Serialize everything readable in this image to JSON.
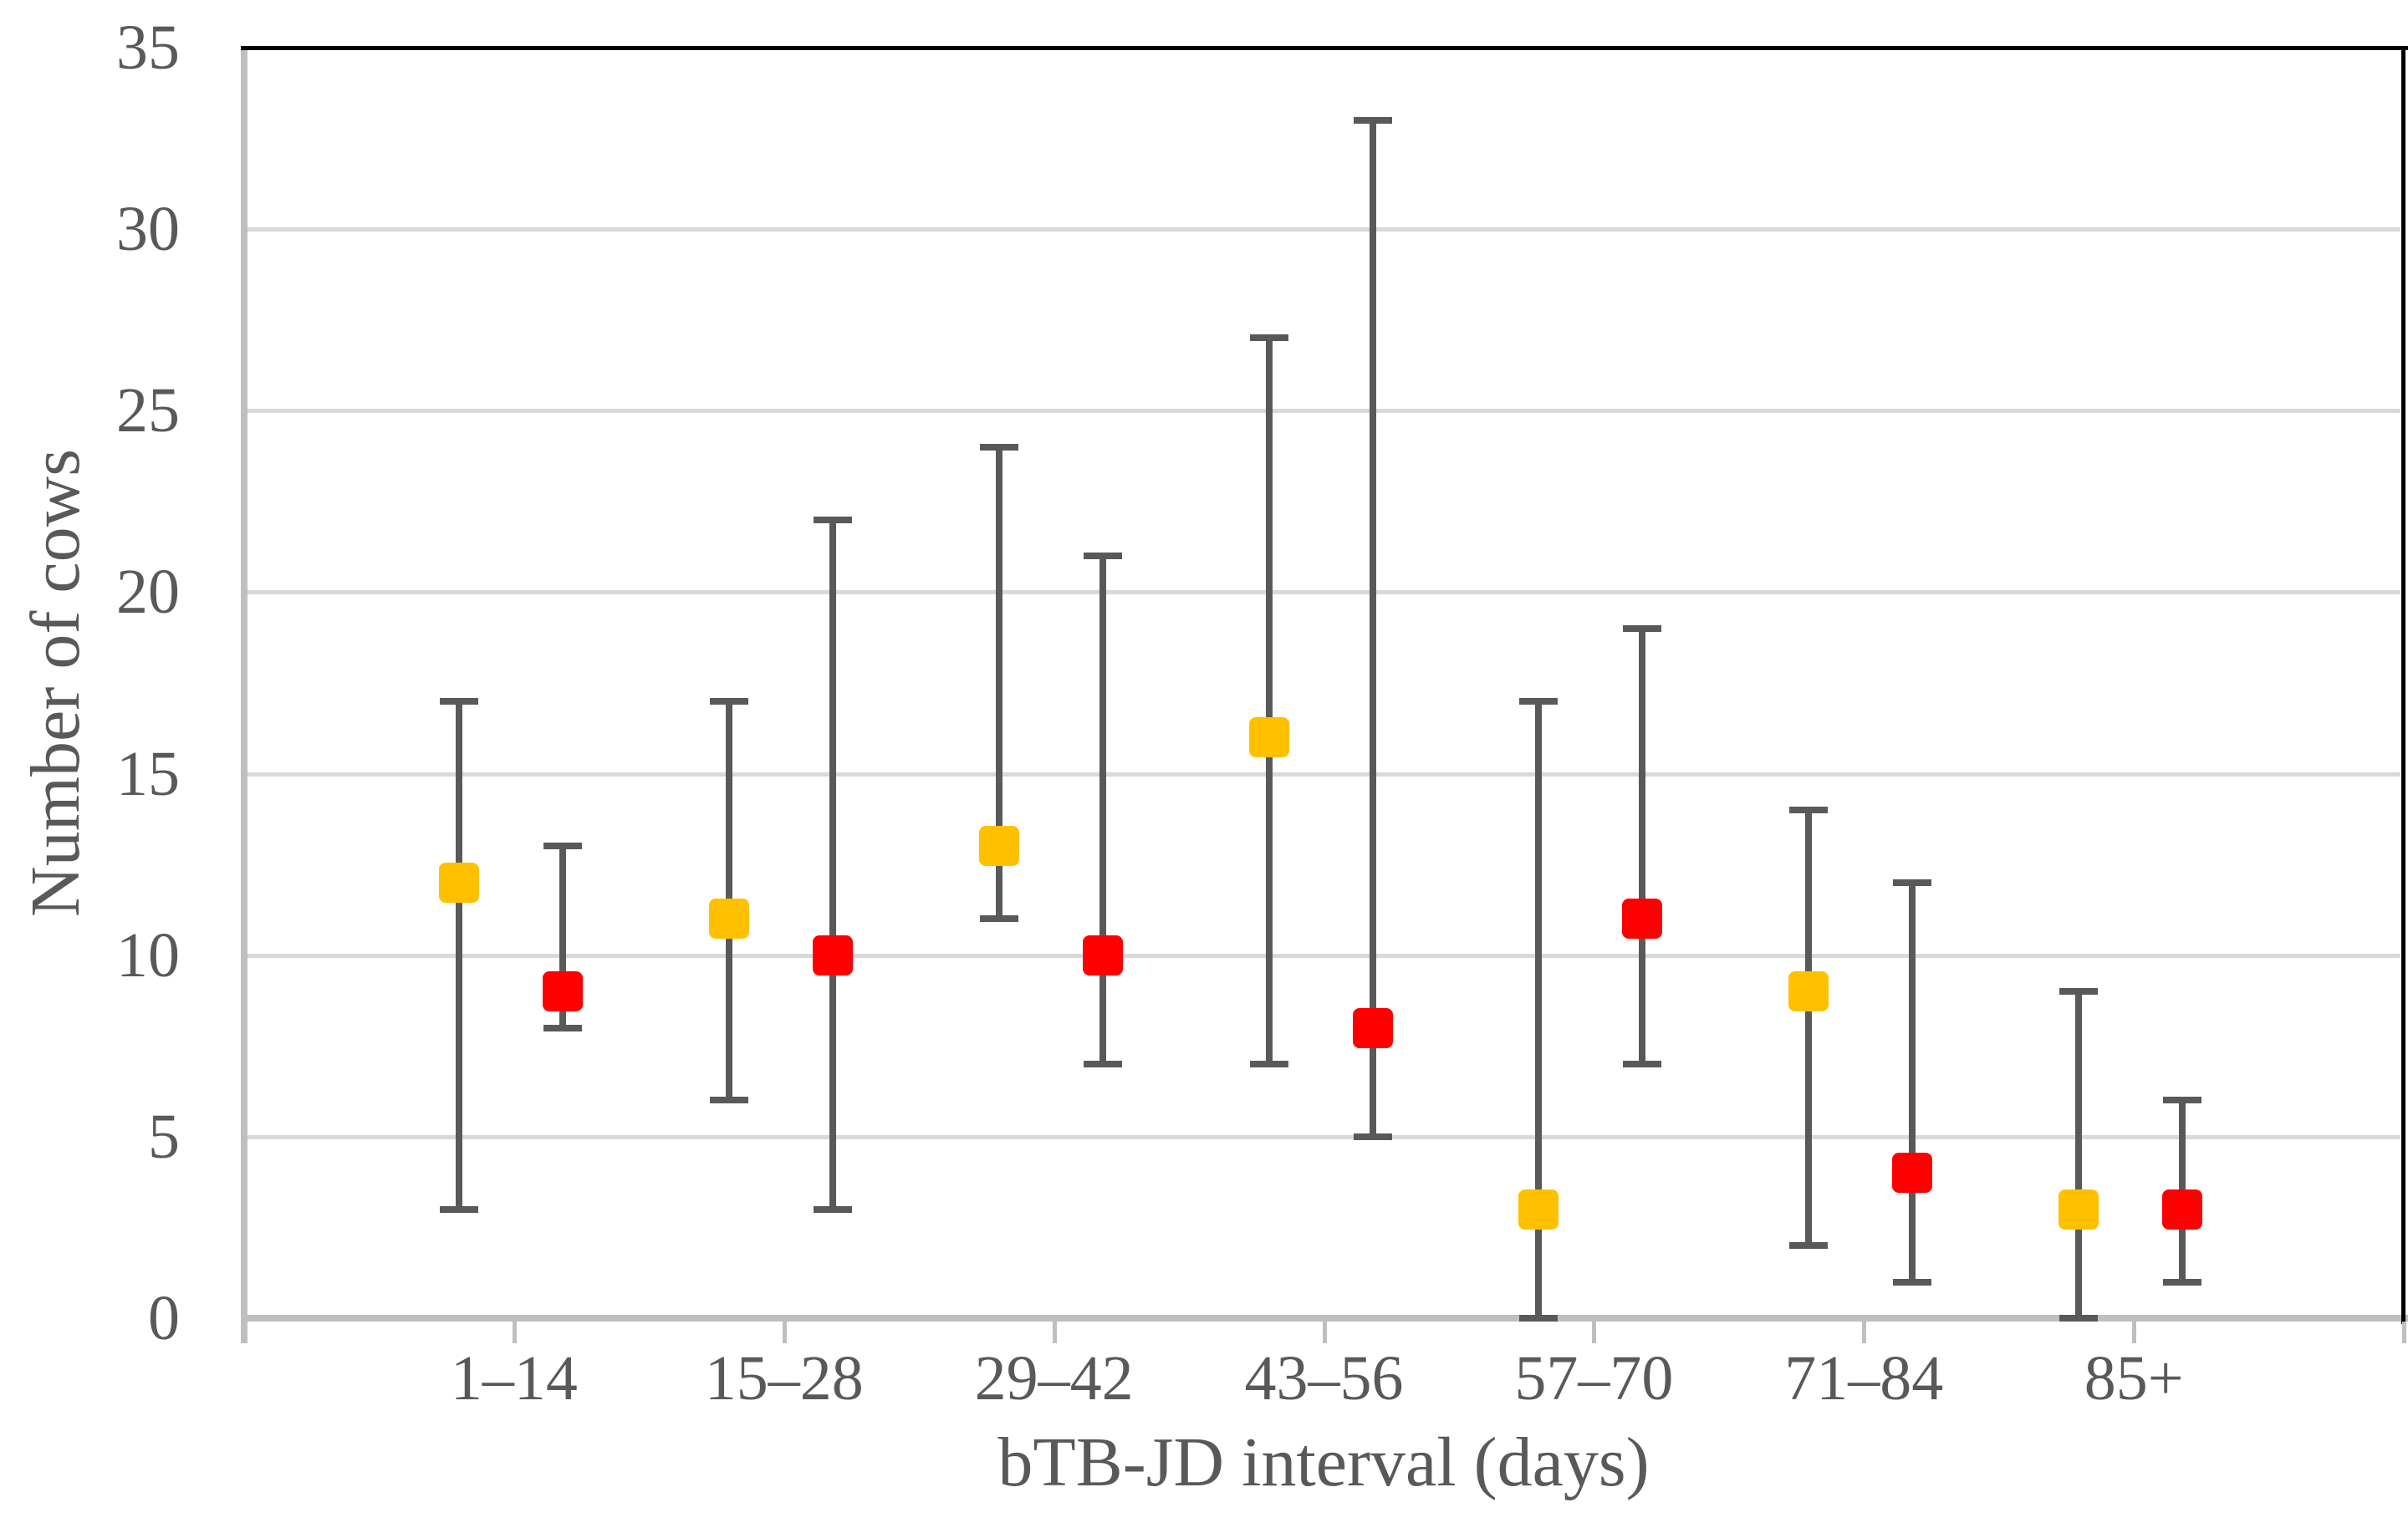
{
  "figure": {
    "background": "#FFFFFF"
  },
  "chart_data": {
    "type": "scatter",
    "title": "",
    "xlabel": "bTB-JD interval (days)",
    "ylabel": "Number of cows",
    "categories": [
      "1–14",
      "15–28",
      "29–42",
      "43–56",
      "57–70",
      "71–84",
      "85+"
    ],
    "series": [
      {
        "name": "yellow-series",
        "color": "#FFC000",
        "values": [
          12,
          11,
          13,
          16,
          3,
          9,
          3
        ],
        "whisker_low": [
          3,
          6,
          11,
          7,
          0,
          2,
          0
        ],
        "whisker_high": [
          17,
          17,
          24,
          27,
          17,
          14,
          9
        ]
      },
      {
        "name": "red-series",
        "color": "#FF0000",
        "values": [
          9,
          10,
          10,
          8,
          11,
          4,
          3
        ],
        "whisker_low": [
          8,
          3,
          7,
          5,
          7,
          1,
          1
        ],
        "whisker_high": [
          13,
          22,
          21,
          33,
          19,
          12,
          6
        ]
      }
    ],
    "ylim": [
      0,
      35
    ],
    "ytick_step": 5,
    "yticks": [
      0,
      5,
      10,
      15,
      20,
      25,
      30,
      35
    ],
    "grid": true,
    "legend_position": "none",
    "error_bars": true
  },
  "style": {
    "error_bar_color": "#595959",
    "gridline_color": "#D9D9D9",
    "axis_line_color": "#BFBFBF",
    "plot_border_color": "#000000",
    "text_color": "#595959",
    "marker_colors": {
      "yellow": "#FFC000",
      "red": "#FF0000"
    }
  }
}
